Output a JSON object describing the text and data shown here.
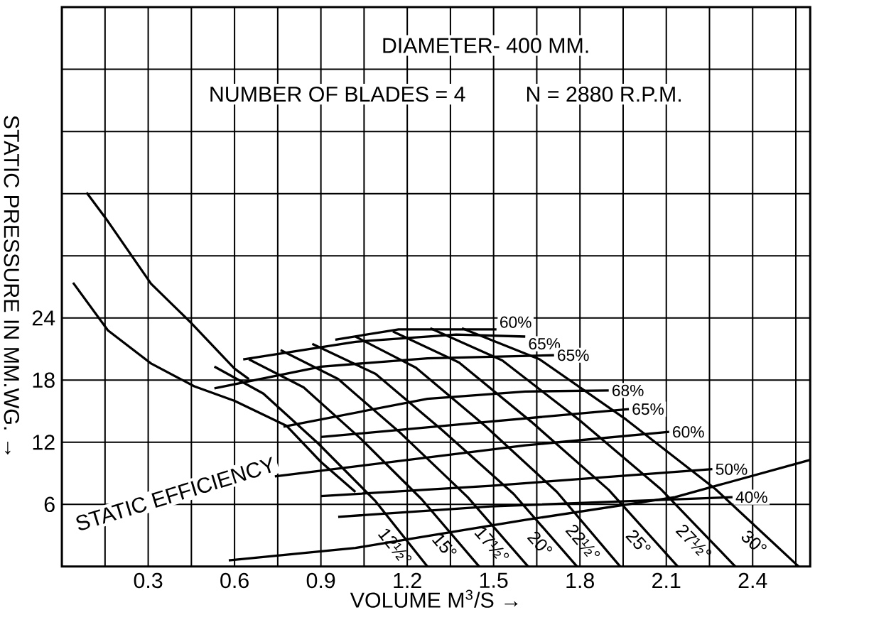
{
  "chart_data": {
    "type": "line",
    "xlabel": "VOLUME M$^{3}$/S  →",
    "ylabel": "STATIC PRESSURE IN MM.WG.  →",
    "annotations": [
      "DIAMETER- 400 MM.",
      "NUMBER OF BLADES = 4",
      "N = 2880 R.P.M.",
      "STATIC EFFICIENCY"
    ],
    "xlim": [
      0,
      2.6
    ],
    "ylim": [
      0,
      54
    ],
    "xticks": [
      {
        "value": 0.15,
        "label": null
      },
      0.3,
      {
        "value": 0.45,
        "label": null
      },
      0.6,
      {
        "value": 0.75,
        "label": null
      },
      0.9,
      {
        "value": 1.05,
        "label": null
      },
      1.2,
      {
        "value": 1.35,
        "label": null
      },
      1.5,
      {
        "value": 1.65,
        "label": null
      },
      1.8,
      {
        "value": 1.95,
        "label": null
      },
      2.1,
      {
        "value": 2.25,
        "label": null
      },
      2.4,
      {
        "value": 2.55,
        "label": null
      }
    ],
    "yticks": [
      6,
      12,
      18,
      24,
      {
        "value": 30,
        "label": null
      },
      {
        "value": 36,
        "label": null
      },
      {
        "value": 42,
        "label": null
      },
      {
        "value": 48,
        "label": null
      }
    ],
    "grid": true,
    "series": [
      {
        "name": "12½°",
        "color": "#000000",
        "x": [
          0.53,
          0.7,
          0.89,
          1.09,
          1.27
        ],
        "values": [
          19.3,
          16.7,
          11.9,
          6.3,
          0
        ]
      },
      {
        "name": "15°",
        "color": "#000000",
        "x": [
          0.65,
          0.84,
          1.04,
          1.25,
          1.45
        ],
        "values": [
          20.0,
          17.3,
          12.3,
          6.5,
          0
        ]
      },
      {
        "name": "17½°",
        "color": "#000000",
        "x": [
          0.76,
          0.96,
          1.18,
          1.41,
          1.62
        ],
        "values": [
          20.9,
          18.1,
          12.8,
          6.7,
          0
        ]
      },
      {
        "name": "20°",
        "color": "#000000",
        "x": [
          0.87,
          1.09,
          1.32,
          1.57,
          1.79
        ],
        "values": [
          21.5,
          18.6,
          13.2,
          7.0,
          0
        ]
      },
      {
        "name": "22½°",
        "color": "#000000",
        "x": [
          1.02,
          1.23,
          1.47,
          1.72,
          1.94
        ],
        "values": [
          22.2,
          19.2,
          13.6,
          7.2,
          0
        ]
      },
      {
        "name": "25°",
        "color": "#000000",
        "x": [
          1.15,
          1.38,
          1.63,
          1.9,
          2.14
        ],
        "values": [
          22.7,
          19.7,
          14.0,
          7.4,
          0
        ]
      },
      {
        "name": "27½°",
        "color": "#000000",
        "x": [
          1.28,
          1.53,
          1.8,
          2.08,
          2.34
        ],
        "values": [
          23.0,
          19.9,
          14.1,
          7.5,
          0
        ]
      },
      {
        "name": "30°",
        "color": "#000000",
        "x": [
          1.39,
          1.66,
          1.96,
          2.27,
          2.56
        ],
        "values": [
          23.0,
          20.0,
          14.2,
          7.5,
          0
        ]
      },
      {
        "color": "#000000",
        "x": [
          0.086,
          0.153,
          0.31,
          0.45,
          0.6,
          0.65
        ],
        "values": [
          36.1,
          33.6,
          27.3,
          23.5,
          19.1,
          18.1
        ]
      },
      {
        "color": "#000000",
        "x": [
          0.039,
          0.16,
          0.31,
          0.46,
          0.6,
          0.78,
          0.9,
          1.02
        ],
        "values": [
          27.4,
          22.8,
          19.6,
          17.4,
          16.0,
          13.6,
          10.1,
          7.2
        ]
      },
      {
        "name": "60%",
        "color": "#000000",
        "x": [
          0.95,
          1.17,
          1.51
        ],
        "values": [
          21.9,
          22.9,
          22.9
        ]
      },
      {
        "name": "65%",
        "color": "#000000",
        "x": [
          0.63,
          1.02,
          1.37,
          1.61
        ],
        "values": [
          20.0,
          21.7,
          22.4,
          22.2
        ]
      },
      {
        "name": "65%",
        "color": "#000000",
        "x": [
          0.53,
          0.9,
          1.27,
          1.71
        ],
        "values": [
          17.2,
          19.3,
          20.1,
          20.4
        ]
      },
      {
        "name": "68%",
        "color": "#000000",
        "x": [
          0.77,
          1.27,
          1.61,
          1.9
        ],
        "values": [
          13.5,
          16.2,
          16.9,
          17.0
        ]
      },
      {
        "name": "65%",
        "color": "#000000",
        "x": [
          0.9,
          1.49,
          1.97
        ],
        "values": [
          12.5,
          14.0,
          15.2
        ]
      },
      {
        "name": "60%",
        "color": "#000000",
        "x": [
          0.74,
          1.61,
          2.11
        ],
        "values": [
          8.7,
          11.7,
          13.0
        ]
      },
      {
        "name": "50%",
        "color": "#000000",
        "x": [
          0.9,
          1.49,
          2.26
        ],
        "values": [
          6.8,
          7.8,
          9.4
        ]
      },
      {
        "name": "40%",
        "color": "#000000",
        "x": [
          0.96,
          1.49,
          2.33
        ],
        "values": [
          4.8,
          5.8,
          6.7
        ]
      },
      {
        "color": "#000000",
        "x": [
          0.58,
          1.02,
          1.61,
          2.13,
          2.6
        ],
        "values": [
          0.6,
          1.8,
          4.5,
          6.7,
          10.3
        ]
      }
    ]
  }
}
